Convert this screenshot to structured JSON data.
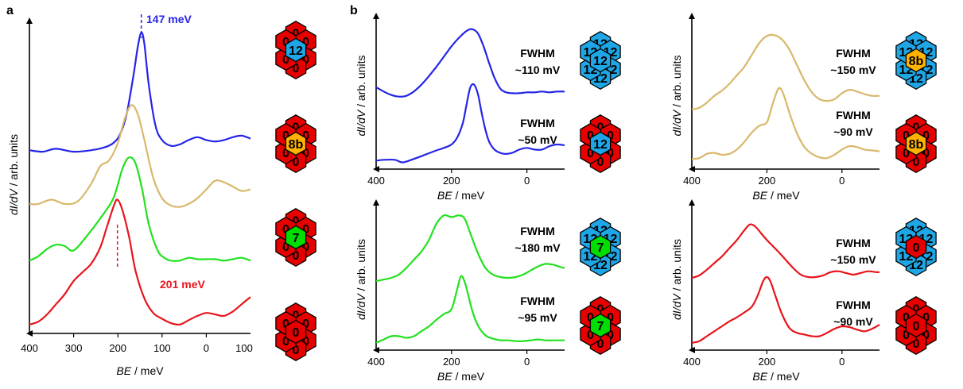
{
  "panel_labels": {
    "a": "a",
    "b": "b"
  },
  "colors": {
    "blue": "#2424e8",
    "gold": "#d8b86a",
    "green": "#22e11f",
    "red": "#e8141c",
    "hex_red": "#e60000",
    "hex_blue": "#1ea6e6",
    "hex_orange": "#ffb300",
    "hex_green": "#00dd00"
  },
  "axis_labels": {
    "y_prefix": "dI/dV",
    "y_suffix": " / arb. units",
    "x_prefix": "BE",
    "x_suffix": " / meV"
  },
  "annotations": {
    "peak_blue": "147 meV",
    "peak_red": "201 meV"
  },
  "fwhm_labels": {
    "title": "FWHM",
    "b1_top": "~110 mV",
    "b1_bottom": "~50 mV",
    "b2_top": "~150 mV",
    "b2_bottom": "~90 mV",
    "b3_top": "~180 mV",
    "b3_bottom": "~95 mV",
    "b4_top": "~150 mV",
    "b4_bottom": "~90 mV"
  },
  "hex_clusters": {
    "a1": {
      "center": "12",
      "outer": [
        "0",
        "0",
        "0",
        "0",
        "0",
        "0"
      ],
      "center_color": "hex_blue",
      "outer_color": "hex_red"
    },
    "a2": {
      "center": "8b",
      "outer": [
        "0",
        "0",
        "0",
        "0",
        "0",
        "0"
      ],
      "center_color": "hex_orange",
      "outer_color": "hex_red"
    },
    "a3": {
      "center": "7",
      "outer": [
        "0",
        "0",
        "0",
        "0",
        "0",
        "0"
      ],
      "center_color": "hex_green",
      "outer_color": "hex_red"
    },
    "a4": {
      "center": "0",
      "outer": [
        "0",
        "0",
        "0",
        "0",
        "0",
        "0"
      ],
      "center_color": "hex_red",
      "outer_color": "hex_red"
    },
    "b1": {
      "center": "12",
      "outer": [
        "12",
        "12",
        "12",
        "12",
        "12",
        "12"
      ],
      "center_color": "hex_blue",
      "outer_color": "hex_blue"
    },
    "b1s": {
      "center": "12",
      "outer": [
        "0",
        "0",
        "0",
        "0",
        "0",
        "0"
      ],
      "center_color": "hex_blue",
      "outer_color": "hex_red"
    },
    "b2": {
      "center": "8b",
      "outer": [
        "12",
        "12",
        "12",
        "12",
        "12",
        "12"
      ],
      "center_color": "hex_orange",
      "outer_color": "hex_blue"
    },
    "b2s": {
      "center": "8b",
      "outer": [
        "0",
        "0",
        "0",
        "0",
        "0",
        "0"
      ],
      "center_color": "hex_orange",
      "outer_color": "hex_red"
    },
    "b3": {
      "center": "7",
      "outer": [
        "12",
        "12",
        "12",
        "12",
        "12",
        "12"
      ],
      "center_color": "hex_green",
      "outer_color": "hex_blue"
    },
    "b3s": {
      "center": "7",
      "outer": [
        "0",
        "0",
        "0",
        "0",
        "0",
        "0"
      ],
      "center_color": "hex_green",
      "outer_color": "hex_red"
    },
    "b4": {
      "center": "0",
      "outer": [
        "12",
        "12",
        "12",
        "12",
        "12",
        "12"
      ],
      "center_color": "hex_red",
      "outer_color": "hex_blue"
    },
    "b4s": {
      "center": "0",
      "outer": [
        "0",
        "0",
        "0",
        "0",
        "0",
        "0"
      ],
      "center_color": "hex_red",
      "outer_color": "hex_red"
    }
  },
  "chart_data": [
    {
      "id": "a",
      "type": "line",
      "xlabel": "BE / meV",
      "ylabel": "dI/dV / arb. units",
      "xlim": [
        400,
        -100
      ],
      "ylim": [
        0,
        10
      ],
      "x_ticks": [
        "400",
        "300",
        "200",
        "100",
        "0",
        "100"
      ],
      "series": [
        {
          "color": "blue",
          "x": [
            400,
            370,
            340,
            300,
            260,
            230,
            210,
            195,
            180,
            165,
            155,
            147,
            140,
            130,
            115,
            100,
            80,
            60,
            40,
            20,
            0,
            -20,
            -40,
            -60,
            -80,
            -100
          ],
          "y": [
            6.25,
            6.2,
            6.3,
            6.2,
            6.25,
            6.35,
            6.5,
            6.8,
            7.5,
            8.8,
            9.8,
            10.3,
            9.9,
            8.5,
            7.1,
            6.6,
            6.4,
            6.45,
            6.6,
            6.7,
            6.6,
            6.55,
            6.6,
            6.7,
            6.75,
            6.65
          ]
        },
        {
          "color": "gold",
          "x": [
            400,
            380,
            350,
            320,
            290,
            260,
            240,
            220,
            200,
            185,
            170,
            155,
            140,
            120,
            100,
            80,
            60,
            40,
            20,
            0,
            -20,
            -40,
            -60,
            -80,
            -100
          ],
          "y": [
            4.4,
            4.4,
            4.55,
            4.4,
            4.5,
            5.1,
            5.7,
            5.9,
            6.5,
            7.3,
            7.8,
            7.5,
            6.6,
            5.3,
            4.6,
            4.35,
            4.3,
            4.4,
            4.6,
            4.9,
            5.2,
            5.15,
            5.0,
            4.85,
            4.9
          ]
        },
        {
          "color": "green",
          "x": [
            400,
            380,
            360,
            340,
            320,
            300,
            270,
            240,
            210,
            190,
            175,
            160,
            145,
            130,
            110,
            95,
            80,
            60,
            40,
            20,
            0,
            -20,
            -40,
            -60,
            -80,
            -100
          ],
          "y": [
            2.45,
            2.6,
            2.85,
            3.0,
            2.95,
            2.8,
            3.3,
            3.9,
            4.6,
            5.6,
            6.0,
            5.8,
            4.9,
            3.7,
            2.8,
            2.55,
            2.45,
            2.45,
            2.55,
            2.5,
            2.5,
            2.5,
            2.45,
            2.5,
            2.55,
            2.45
          ]
        },
        {
          "color": "red",
          "x": [
            400,
            380,
            360,
            340,
            320,
            300,
            280,
            260,
            240,
            225,
            210,
            201,
            190,
            175,
            160,
            140,
            120,
            100,
            80,
            60,
            40,
            20,
            0,
            -20,
            -40,
            -60,
            -80,
            -100
          ],
          "y": [
            0.25,
            0.35,
            0.6,
            0.95,
            1.3,
            1.75,
            2.05,
            2.35,
            2.9,
            3.6,
            4.3,
            4.55,
            4.2,
            3.3,
            2.1,
            1.15,
            0.65,
            0.45,
            0.3,
            0.25,
            0.4,
            0.55,
            0.65,
            0.6,
            0.55,
            0.7,
            0.95,
            1.2
          ]
        }
      ],
      "annotations": [
        {
          "text": "147 meV",
          "x": 147
        },
        {
          "text": "201 meV",
          "x": 201
        }
      ]
    },
    {
      "id": "b1",
      "type": "line",
      "xlabel": "BE / meV",
      "ylabel": "dI/dV / arb. units",
      "xlim": [
        400,
        -100
      ],
      "x_ticks": [
        "400",
        "200",
        "0"
      ],
      "series": [
        {
          "color": "blue",
          "x": [
            400,
            380,
            360,
            340,
            320,
            300,
            280,
            260,
            240,
            220,
            200,
            180,
            160,
            145,
            130,
            115,
            100,
            85,
            70,
            55,
            40,
            20,
            0,
            -20,
            -40,
            -60,
            -80,
            -100
          ],
          "y": [
            4.7,
            4.45,
            4.25,
            4.15,
            4.2,
            4.45,
            4.85,
            5.35,
            5.9,
            6.5,
            7.1,
            7.6,
            8.0,
            8.1,
            7.85,
            7.1,
            6.1,
            5.2,
            4.6,
            4.4,
            4.35,
            4.35,
            4.4,
            4.4,
            4.45,
            4.4,
            4.45,
            4.45
          ]
        },
        {
          "color": "blue",
          "x": [
            400,
            380,
            350,
            330,
            300,
            270,
            240,
            220,
            200,
            185,
            170,
            160,
            150,
            140,
            130,
            120,
            110,
            100,
            90,
            80,
            60,
            40,
            20,
            0,
            -20,
            -40,
            -60,
            -80,
            -100
          ],
          "y": [
            0.4,
            0.45,
            0.45,
            0.3,
            0.5,
            0.75,
            1.0,
            1.15,
            1.35,
            1.75,
            2.6,
            3.7,
            4.7,
            4.85,
            4.3,
            3.2,
            2.2,
            1.5,
            1.15,
            0.95,
            0.8,
            0.85,
            1.05,
            1.15,
            1.05,
            1.05,
            1.25,
            1.35,
            1.3
          ]
        }
      ]
    },
    {
      "id": "b2",
      "type": "line",
      "xlabel": "BE / meV",
      "ylabel": "dI/dV / arb. units",
      "xlim": [
        400,
        -100
      ],
      "x_ticks": [
        "400",
        "200",
        "0"
      ],
      "series": [
        {
          "color": "gold",
          "x": [
            400,
            380,
            360,
            340,
            320,
            300,
            280,
            260,
            240,
            220,
            200,
            180,
            160,
            140,
            120,
            100,
            80,
            60,
            40,
            20,
            0,
            -20,
            -40,
            -60,
            -80,
            -100
          ],
          "y": [
            3.4,
            3.5,
            3.8,
            4.2,
            4.5,
            4.9,
            5.4,
            5.9,
            6.6,
            7.3,
            7.7,
            7.75,
            7.5,
            6.9,
            6.0,
            5.1,
            4.4,
            4.0,
            3.9,
            4.0,
            4.35,
            4.55,
            4.45,
            4.3,
            4.2,
            4.2
          ]
        },
        {
          "color": "gold",
          "x": [
            400,
            380,
            360,
            340,
            320,
            300,
            280,
            260,
            240,
            220,
            200,
            185,
            170,
            160,
            150,
            140,
            120,
            100,
            80,
            60,
            40,
            20,
            0,
            -20,
            -40,
            -60,
            -80,
            -100
          ],
          "y": [
            0.5,
            0.55,
            0.8,
            0.85,
            0.75,
            0.8,
            1.05,
            1.5,
            2.05,
            2.45,
            2.65,
            3.7,
            4.6,
            4.5,
            3.9,
            3.2,
            2.0,
            1.2,
            0.8,
            0.6,
            0.55,
            0.75,
            1.05,
            1.25,
            1.2,
            1.05,
            1.0,
            0.95
          ]
        }
      ]
    },
    {
      "id": "b3",
      "type": "line",
      "xlabel": "BE / meV",
      "ylabel": "dI/dV / arb. units",
      "xlim": [
        400,
        -100
      ],
      "x_ticks": [
        "400",
        "200",
        "0"
      ],
      "series": [
        {
          "color": "green",
          "x": [
            400,
            380,
            360,
            340,
            320,
            300,
            280,
            260,
            240,
            220,
            200,
            180,
            165,
            150,
            130,
            110,
            90,
            70,
            50,
            30,
            10,
            -10,
            -30,
            -50,
            -70,
            -90,
            -100
          ],
          "y": [
            4.1,
            4.2,
            4.3,
            4.5,
            4.9,
            5.4,
            5.9,
            6.6,
            7.6,
            8.1,
            8.0,
            8.1,
            7.9,
            7.0,
            5.8,
            4.9,
            4.5,
            4.35,
            4.3,
            4.35,
            4.5,
            4.75,
            5.0,
            5.15,
            5.1,
            4.95,
            4.9
          ]
        },
        {
          "color": "green",
          "x": [
            400,
            380,
            360,
            340,
            320,
            300,
            280,
            260,
            240,
            220,
            200,
            185,
            175,
            165,
            155,
            145,
            130,
            110,
            90,
            70,
            50,
            30,
            10,
            -10,
            -30,
            -50,
            -70,
            -90,
            -100
          ],
          "y": [
            0.35,
            0.55,
            0.75,
            0.75,
            0.65,
            0.75,
            1.05,
            1.35,
            1.75,
            2.1,
            2.4,
            3.6,
            4.4,
            4.05,
            3.2,
            2.3,
            1.4,
            0.8,
            0.6,
            0.5,
            0.5,
            0.45,
            0.45,
            0.5,
            0.55,
            0.5,
            0.5,
            0.5,
            0.5
          ]
        }
      ]
    },
    {
      "id": "b4",
      "type": "line",
      "xlabel": "BE / meV",
      "ylabel": "dI/dV / arb. units",
      "xlim": [
        400,
        -100
      ],
      "x_ticks": [
        "400",
        "200",
        "0"
      ],
      "series": [
        {
          "color": "red",
          "x": [
            400,
            380,
            360,
            340,
            320,
            300,
            280,
            260,
            245,
            230,
            215,
            200,
            185,
            170,
            150,
            130,
            110,
            90,
            70,
            50,
            30,
            10,
            -10,
            -30,
            -50,
            -70,
            -90,
            -100
          ],
          "y": [
            4.3,
            4.45,
            4.8,
            5.2,
            5.6,
            6.1,
            6.6,
            7.2,
            7.55,
            7.4,
            7.0,
            6.6,
            6.25,
            5.9,
            5.4,
            4.9,
            4.5,
            4.35,
            4.35,
            4.45,
            4.65,
            4.7,
            4.6,
            4.5,
            4.6,
            4.7,
            4.65,
            4.65
          ]
        },
        {
          "color": "red",
          "x": [
            400,
            380,
            360,
            340,
            320,
            300,
            280,
            260,
            240,
            225,
            210,
            200,
            190,
            175,
            160,
            140,
            120,
            100,
            80,
            60,
            40,
            20,
            0,
            -20,
            -40,
            -60,
            -80,
            -100
          ],
          "y": [
            0.35,
            0.45,
            0.75,
            1.05,
            1.35,
            1.65,
            1.9,
            2.2,
            2.55,
            3.2,
            4.1,
            4.35,
            4.05,
            3.05,
            2.1,
            1.25,
            0.95,
            0.85,
            0.75,
            0.75,
            0.95,
            1.2,
            1.35,
            1.3,
            1.15,
            1.05,
            1.2,
            1.45
          ]
        }
      ]
    }
  ]
}
